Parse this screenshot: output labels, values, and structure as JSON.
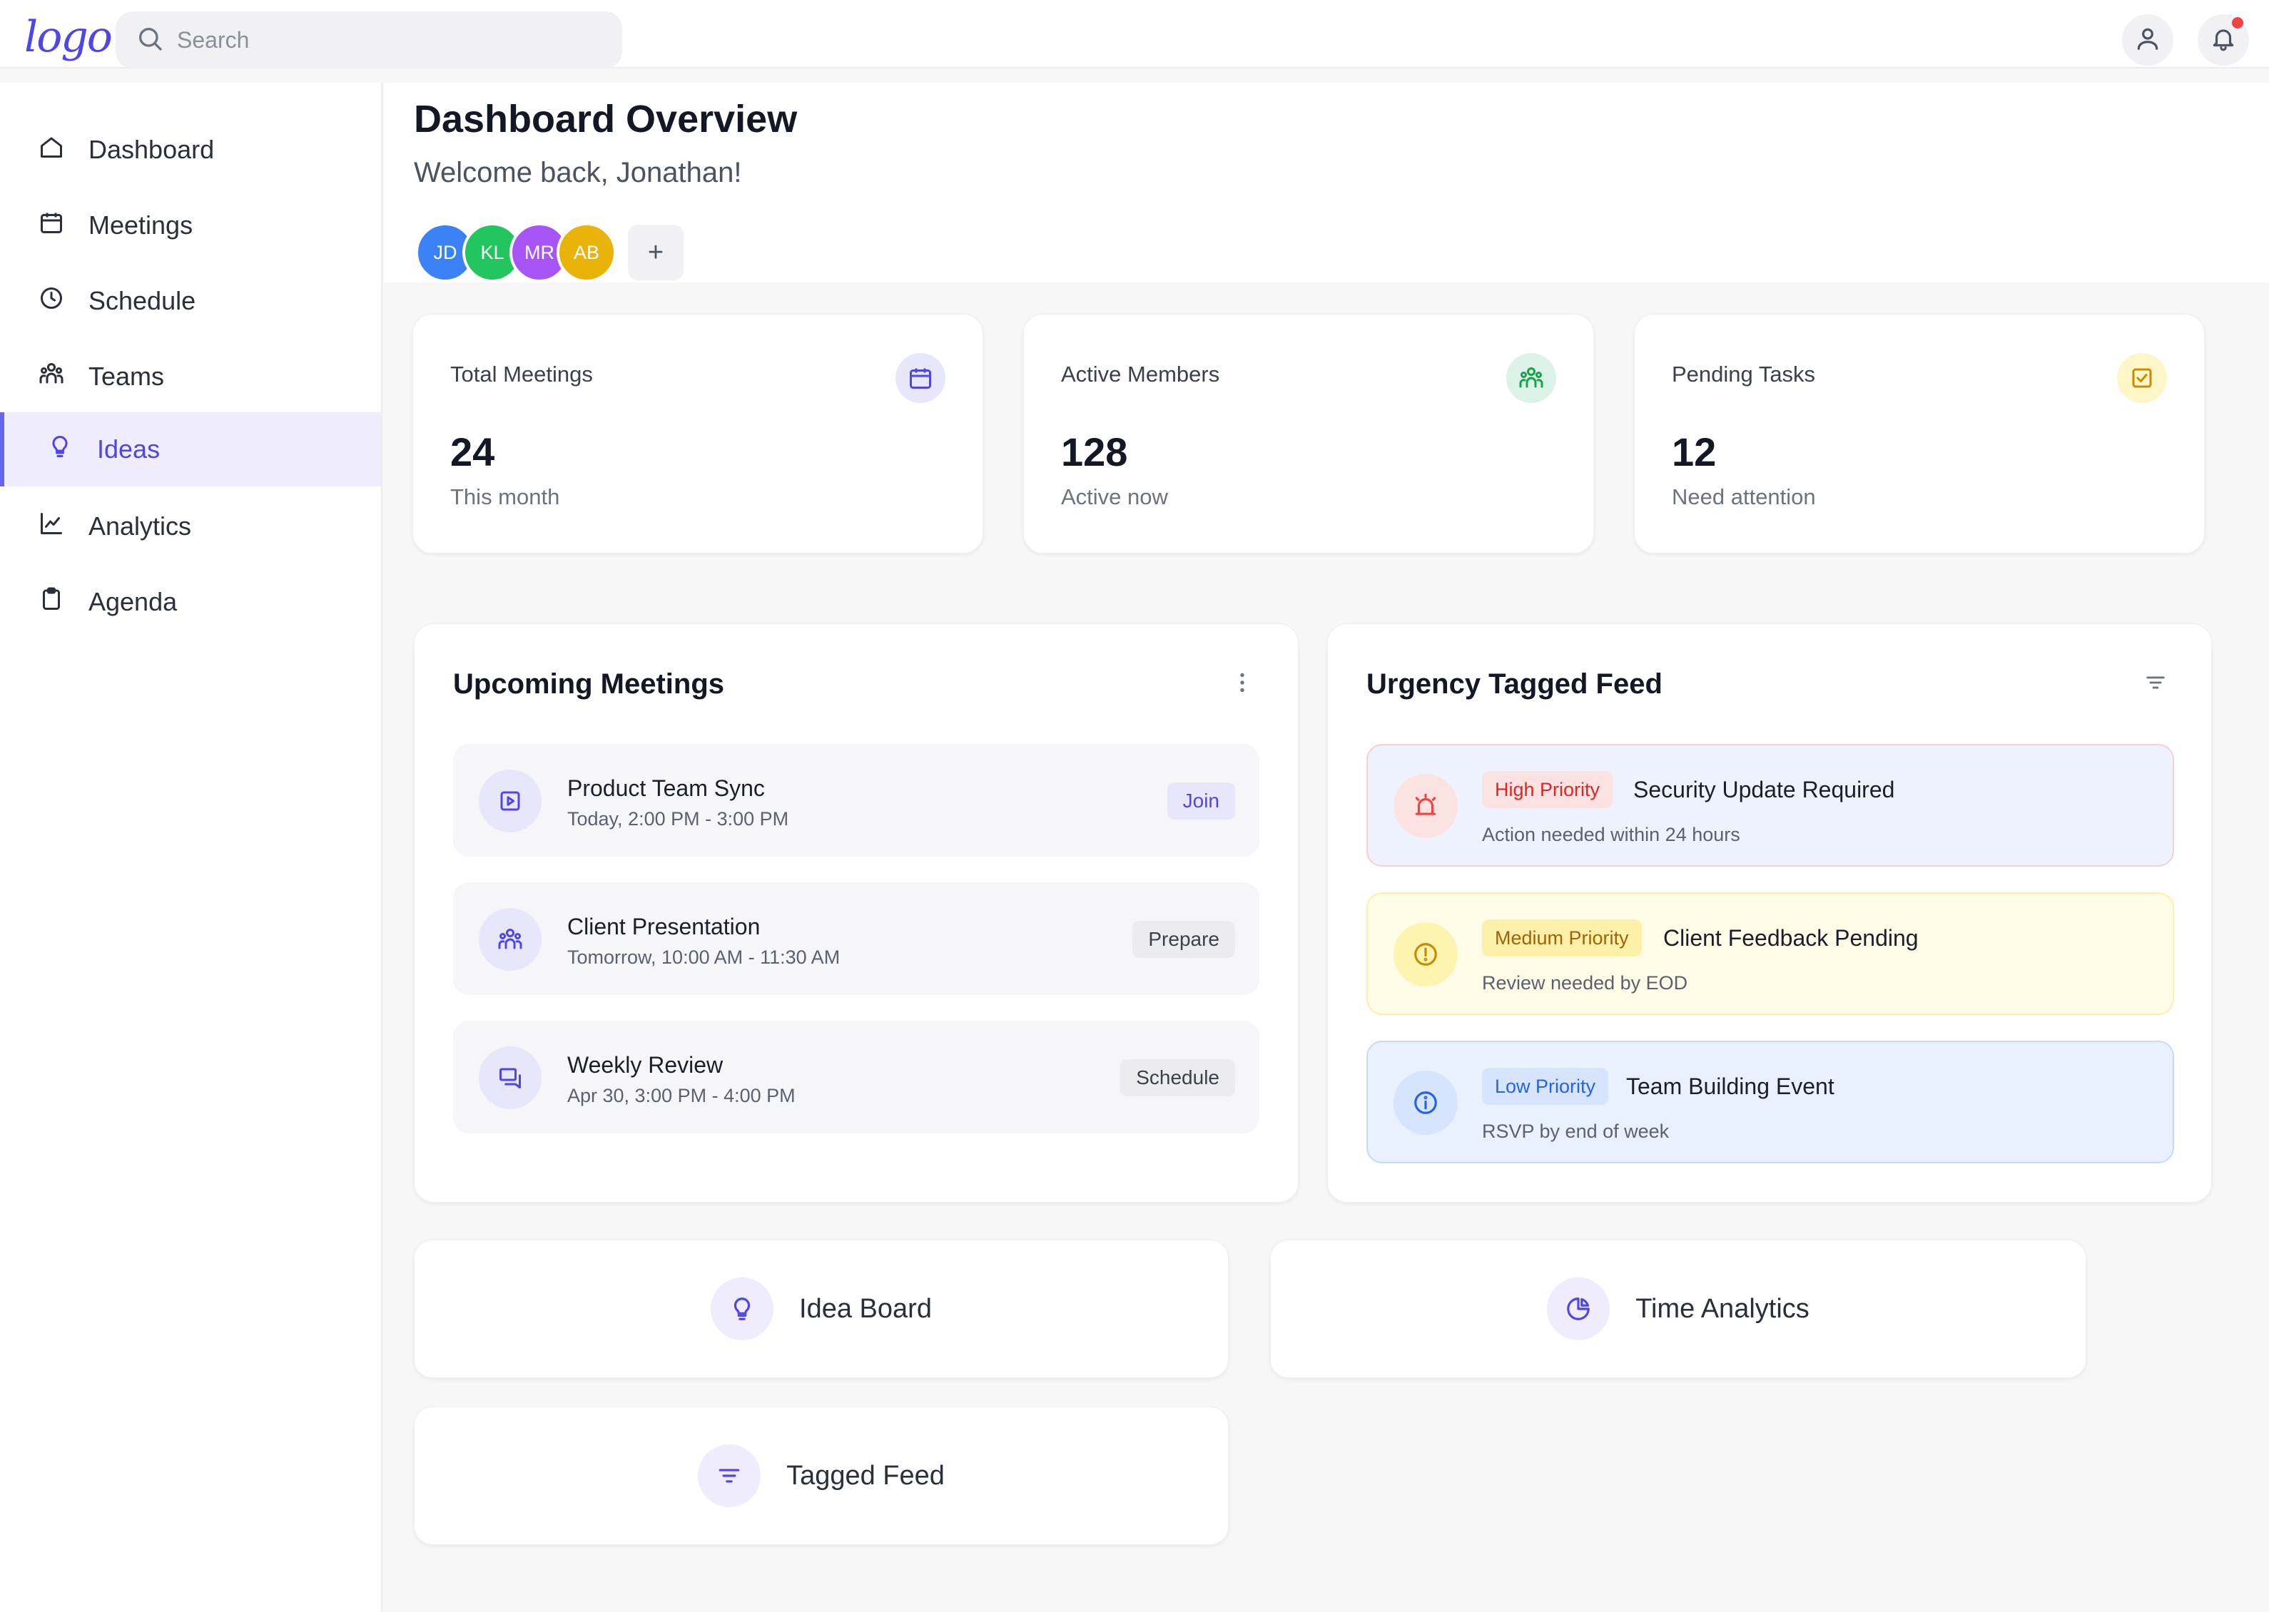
{
  "brand": {
    "logo_text": "logo"
  },
  "search": {
    "placeholder": "Search"
  },
  "sidebar": {
    "items": [
      {
        "label": "Dashboard",
        "icon": "home-icon"
      },
      {
        "label": "Meetings",
        "icon": "calendar-icon"
      },
      {
        "label": "Schedule",
        "icon": "clock-icon"
      },
      {
        "label": "Teams",
        "icon": "users-icon"
      },
      {
        "label": "Ideas",
        "icon": "lightbulb-icon",
        "active": true
      },
      {
        "label": "Analytics",
        "icon": "chart-line-icon"
      },
      {
        "label": "Agenda",
        "icon": "clipboard-icon"
      }
    ]
  },
  "header": {
    "title": "Dashboard Overview",
    "subtitle": "Welcome back, Jonathan!",
    "avatars": [
      "JD",
      "KL",
      "MR",
      "AB"
    ],
    "add_label": "+"
  },
  "stats": [
    {
      "label": "Total Meetings",
      "value": "24",
      "sub": "This month",
      "icon": "calendar-icon"
    },
    {
      "label": "Active Members",
      "value": "128",
      "sub": "Active now",
      "icon": "users-icon"
    },
    {
      "label": "Pending Tasks",
      "value": "12",
      "sub": "Need attention",
      "icon": "check-square-icon"
    }
  ],
  "meetings": {
    "title": "Upcoming Meetings",
    "items": [
      {
        "title": "Product Team Sync",
        "time": "Today, 2:00 PM - 3:00 PM",
        "action": "Join",
        "icon": "play-square-icon"
      },
      {
        "title": "Client Presentation",
        "time": "Tomorrow, 10:00 AM - 11:30 AM",
        "action": "Prepare",
        "icon": "users-icon"
      },
      {
        "title": "Weekly Review",
        "time": "Apr 30, 3:00 PM - 4:00 PM",
        "action": "Schedule",
        "icon": "chat-bubbles-icon"
      }
    ]
  },
  "feed": {
    "title": "Urgency Tagged Feed",
    "items": [
      {
        "badge": "High Priority",
        "title": "Security Update Required",
        "sub": "Action needed within 24 hours",
        "icon": "alarm-icon"
      },
      {
        "badge": "Medium Priority",
        "title": "Client Feedback Pending",
        "sub": "Review needed by EOD",
        "icon": "alert-circle-icon"
      },
      {
        "badge": "Low Priority",
        "title": "Team Building Event",
        "sub": "RSVP by end of week",
        "icon": "info-circle-icon"
      }
    ]
  },
  "quick_links": [
    {
      "label": "Idea Board",
      "icon": "lightbulb-icon"
    },
    {
      "label": "Time Analytics",
      "icon": "pie-chart-icon"
    },
    {
      "label": "Tagged Feed",
      "icon": "filter-icon"
    }
  ],
  "colors": {
    "accent": "#4f46e5",
    "high": "#ef4444",
    "medium": "#ca8a04",
    "low": "#3b82f6",
    "avatar_jd": "#3b82f6",
    "avatar_kl": "#22c55e",
    "avatar_mr": "#a855f7",
    "avatar_ab": "#eab308"
  }
}
